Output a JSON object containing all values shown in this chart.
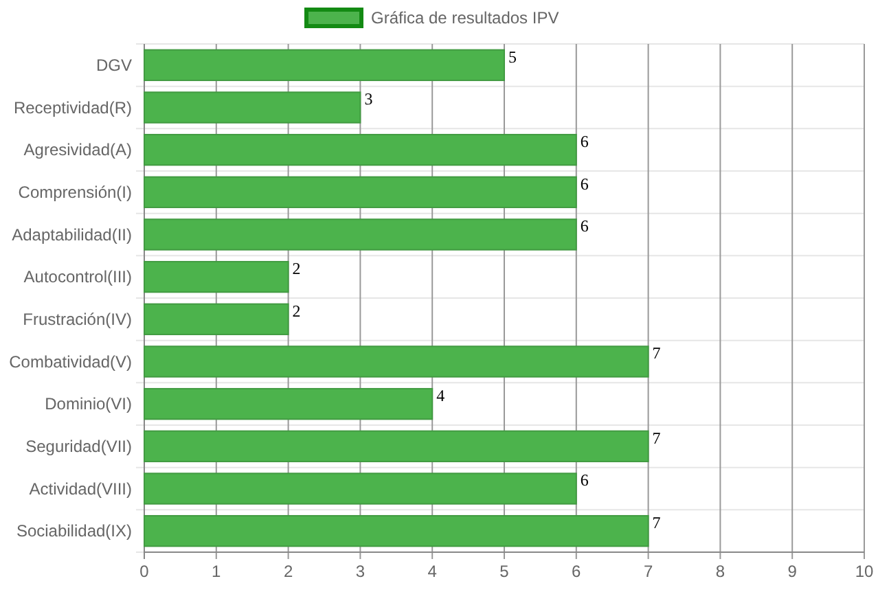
{
  "chart_data": {
    "type": "bar",
    "orientation": "horizontal",
    "categories": [
      "DGV",
      "Receptividad(R)",
      "Agresividad(A)",
      "Comprensión(I)",
      "Adaptabilidad(II)",
      "Autocontrol(III)",
      "Frustración(IV)",
      "Combatividad(V)",
      "Dominio(VI)",
      "Seguridad(VII)",
      "Actividad(VIII)",
      "Sociabilidad(IX)"
    ],
    "series": [
      {
        "name": "Gráfica de resultados IPV",
        "color": "#4cb34c",
        "values": [
          5,
          3,
          6,
          6,
          6,
          2,
          2,
          7,
          4,
          7,
          6,
          7
        ]
      }
    ],
    "xlim": [
      0,
      10
    ],
    "xticks": [
      0,
      1,
      2,
      3,
      4,
      5,
      6,
      7,
      8,
      9,
      10
    ],
    "grid": true,
    "legend": "top",
    "data_labels": true
  }
}
